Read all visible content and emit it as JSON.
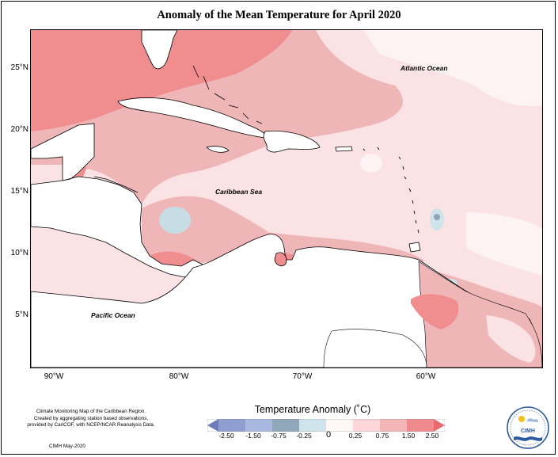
{
  "title": "Anomaly of the Mean Temperature for April 2020",
  "latitude_labels": [
    "25°N",
    "20°N",
    "15°N",
    "10°N",
    "5°N"
  ],
  "longitude_labels": [
    "90°W",
    "80°W",
    "70°W",
    "60°W"
  ],
  "ocean_labels": {
    "atlantic": "Atlantic Ocean",
    "caribbean": "Caribbean Sea",
    "pacific": "Pacific Ocean"
  },
  "credits": {
    "line1": "Climate Monitoring Map of the Caribbean Region.",
    "line2": "Created by aggregating station based observations,",
    "line3": "provided by CariCOF, with NCEP/NCAR Reanalysis Data.",
    "date": "CIMH May-2020"
  },
  "legend": {
    "title": "Temperature Anomaly (˚C)",
    "ticks": [
      "-2.50",
      "-1.50",
      "-0.75",
      "-0.25",
      "0",
      "0.25",
      "0.75",
      "1.50",
      "2.50"
    ],
    "colors": [
      "#6d7bb8",
      "#8e9ed0",
      "#a9b8e0",
      "#8fa7b8",
      "#cfe3ea",
      "#fff6f6",
      "#fcd6d8",
      "#f4b5b8",
      "#ef8a8d",
      "#e96b6f"
    ]
  },
  "logo": {
    "text": "CIMH"
  },
  "colors": {
    "land": "#ffffff",
    "anomaly_025_075": "#fbe2e4",
    "anomaly_075_150": "#efb6b7",
    "anomaly_150_250": "#f08d8f",
    "anomaly_0_025": "#fdf3f4",
    "anomaly_negative": "#c7dde6"
  }
}
